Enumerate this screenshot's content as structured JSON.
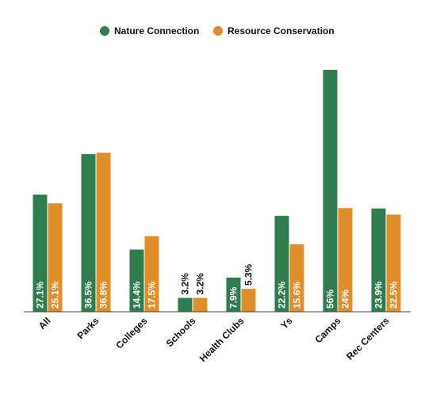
{
  "chart_data": {
    "type": "bar",
    "categories": [
      "All",
      "Parks",
      "Colleges",
      "Schools",
      "Health Clubs",
      "Ys",
      "Camps",
      "Rec Centers"
    ],
    "series": [
      {
        "name": "Nature Connection",
        "color": "#2e7d4f",
        "values": [
          27.1,
          36.5,
          14.4,
          3.2,
          7.9,
          22.2,
          56,
          23.9
        ],
        "value_labels": [
          "27.1%",
          "36.5%",
          "14.4%",
          "3.2%",
          "7.9%",
          "22.2%",
          "56%",
          "23.9%"
        ]
      },
      {
        "name": "Resource Conservation",
        "color": "#e08e2a",
        "values": [
          25.1,
          36.8,
          17.5,
          3.2,
          5.3,
          15.6,
          24,
          22.5
        ],
        "value_labels": [
          "25.1%",
          "36.8%",
          "17.5%",
          "3.2%",
          "5.3%",
          "15.6%",
          "24%",
          "22.5%"
        ]
      }
    ]
  }
}
